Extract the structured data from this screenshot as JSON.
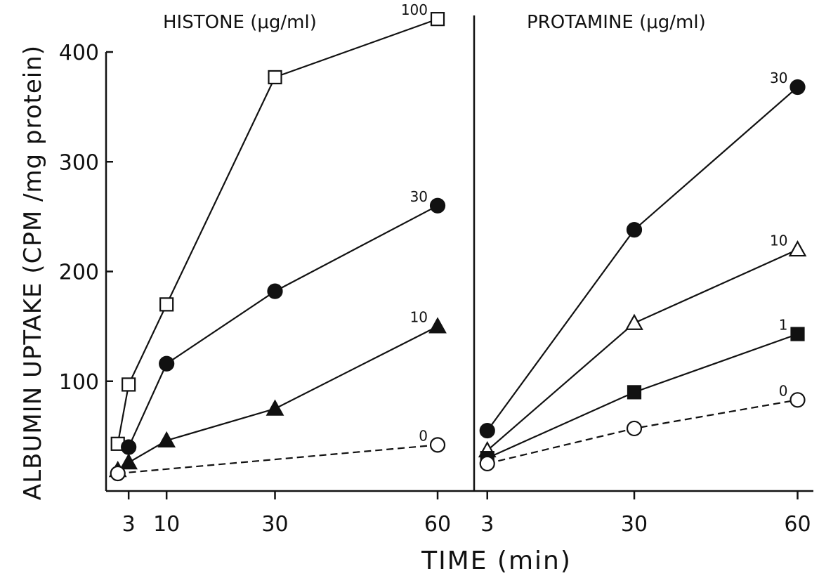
{
  "chart_data": {
    "type": "line",
    "ylabel": "ALBUMIN UPTAKE (CPM /mg protein)",
    "xlabel": "TIME (min)",
    "ylim": [
      0,
      400
    ],
    "y_ticks": [
      100,
      200,
      300,
      400
    ],
    "grid": false,
    "colors": {
      "ink": "#111111",
      "background": "#ffffff"
    },
    "panels": [
      {
        "title": "HISTONE (μg/ml)",
        "x_ticks": [
          3,
          10,
          30,
          60
        ],
        "series": [
          {
            "name": "100",
            "marker": "open-square",
            "dash": false,
            "x": [
              1,
              3,
              10,
              30,
              60
            ],
            "y": [
              43,
              97,
              170,
              377,
              430
            ]
          },
          {
            "name": "30",
            "marker": "filled-circle",
            "dash": false,
            "x": [
              3,
              10,
              30,
              60
            ],
            "y": [
              40,
              116,
              182,
              260
            ]
          },
          {
            "name": "10",
            "marker": "filled-triangle",
            "dash": false,
            "x": [
              1,
              3,
              10,
              30,
              60
            ],
            "y": [
              19,
              26,
              46,
              75,
              150
            ]
          },
          {
            "name": "0",
            "marker": "open-circle",
            "dash": true,
            "x": [
              1,
              60
            ],
            "y": [
              16,
              42
            ]
          }
        ]
      },
      {
        "title": "PROTAMINE (μg/ml)",
        "x_ticks": [
          3,
          30,
          60
        ],
        "series": [
          {
            "name": "30",
            "marker": "filled-circle",
            "dash": false,
            "x": [
              3,
              30,
              60
            ],
            "y": [
              55,
              238,
              368
            ]
          },
          {
            "name": "10",
            "marker": "open-triangle",
            "dash": false,
            "x": [
              3,
              30,
              60
            ],
            "y": [
              37,
              153,
              220
            ]
          },
          {
            "name": "1",
            "marker": "filled-square",
            "dash": false,
            "x": [
              3,
              30,
              60
            ],
            "y": [
              30,
              90,
              143
            ]
          },
          {
            "name": "0",
            "marker": "open-circle",
            "dash": true,
            "x": [
              3,
              30,
              60
            ],
            "y": [
              25,
              57,
              83
            ]
          }
        ]
      }
    ]
  }
}
